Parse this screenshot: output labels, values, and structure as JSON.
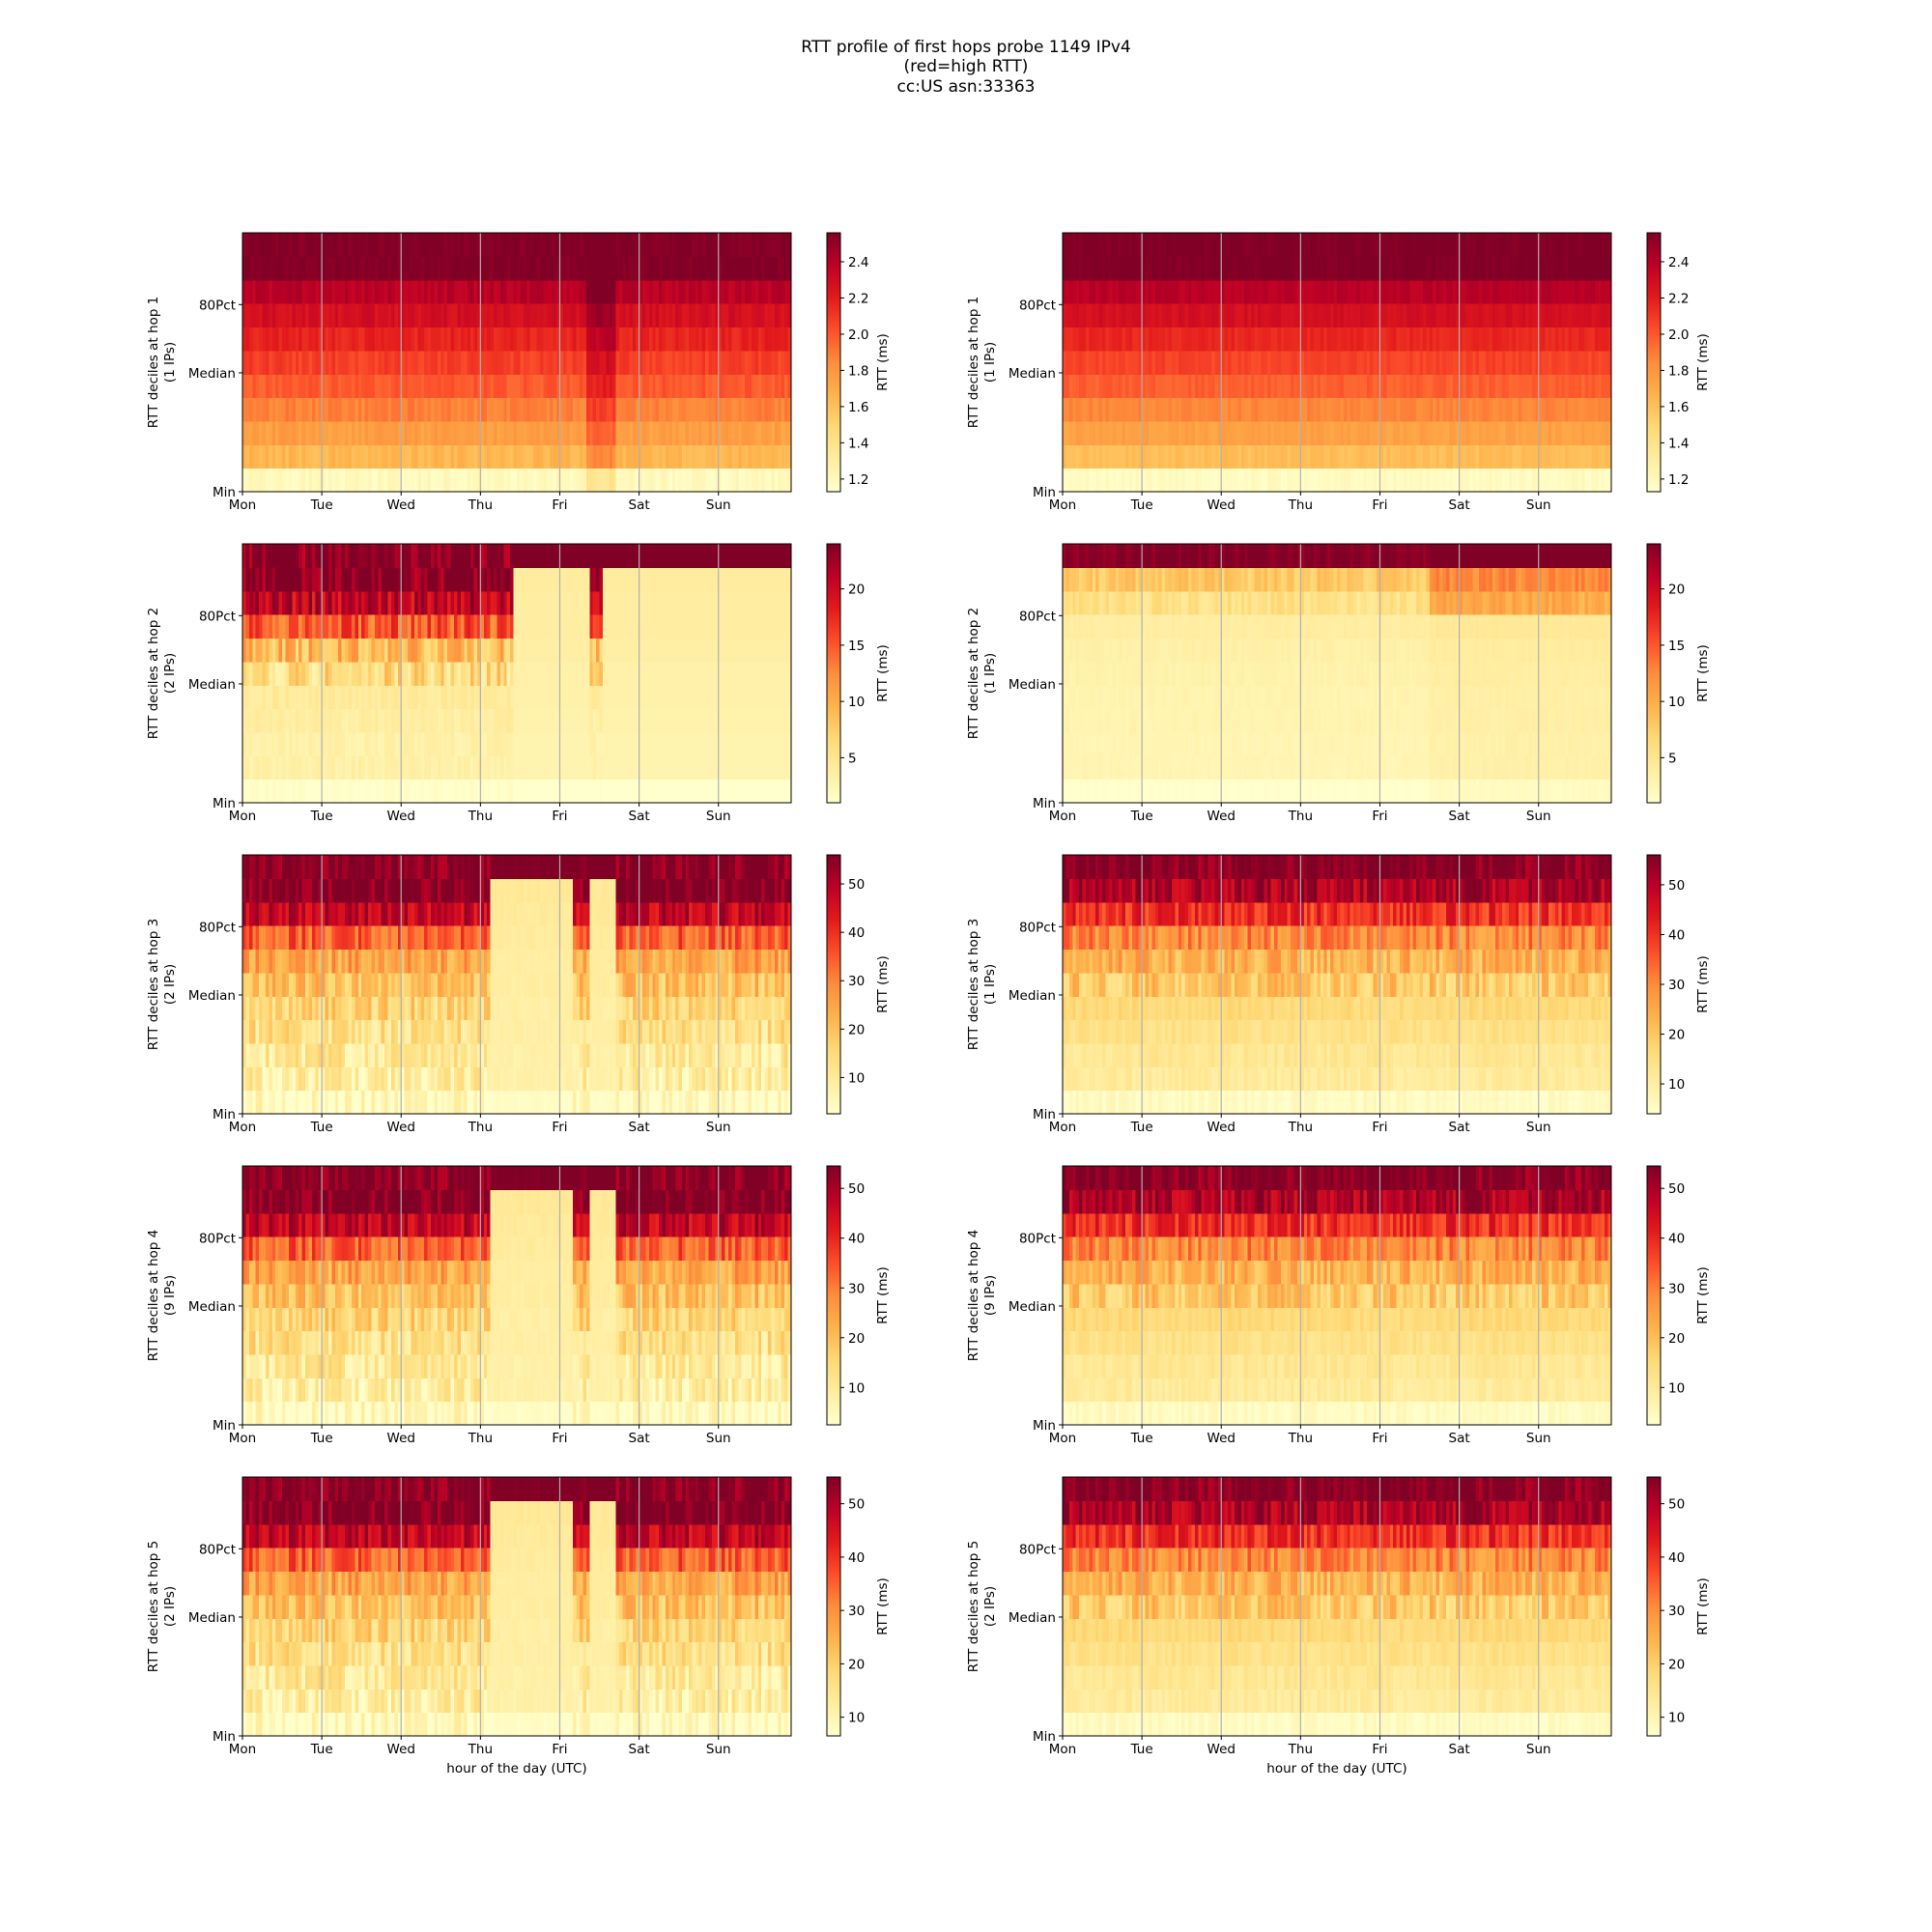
{
  "title_lines": [
    "RTT profile of first hops probe 1149 IPv4",
    "(red=high RTT)",
    "cc:US asn:33363"
  ],
  "x_tick_labels": [
    "Mon",
    "Tue",
    "Wed",
    "Thu",
    "Fri",
    "Sat",
    "Sun"
  ],
  "y_tick_labels": [
    "Min",
    "Median",
    "80Pct"
  ],
  "xlabel": "hour of the day (UTC)",
  "colorbar_label": "RTT (ms)",
  "colormap": [
    "#ffffcc",
    "#ffeda0",
    "#fed976",
    "#feb24c",
    "#fd8d3c",
    "#fc4e2a",
    "#e31a1c",
    "#bd0026",
    "#800026"
  ],
  "chart_data": [
    {
      "type": "heatmap",
      "column": "left",
      "hop": 1,
      "ylabel": "RTT deciles at hop 1",
      "ylabel2": "(1 IPs)",
      "colorbar_ticks": [
        "1.2",
        "1.4",
        "1.6",
        "1.8",
        "2.0",
        "2.2",
        "2.4"
      ],
      "colorbar_values": [
        1.2,
        1.4,
        1.6,
        1.8,
        2.0,
        2.2,
        2.4
      ],
      "color_range": [
        1.13,
        2.56
      ],
      "pattern": "hop1a"
    },
    {
      "type": "heatmap",
      "column": "right",
      "hop": 1,
      "ylabel": "RTT deciles at hop 1",
      "ylabel2": "(1 IPs)",
      "colorbar_ticks": [
        "1.2",
        "1.4",
        "1.6",
        "1.8",
        "2.0",
        "2.2",
        "2.4"
      ],
      "colorbar_values": [
        1.2,
        1.4,
        1.6,
        1.8,
        2.0,
        2.2,
        2.4
      ],
      "color_range": [
        1.13,
        2.56
      ],
      "pattern": "hop1b"
    },
    {
      "type": "heatmap",
      "column": "left",
      "hop": 2,
      "ylabel": "RTT deciles at hop 2",
      "ylabel2": "(2 IPs)",
      "colorbar_ticks": [
        "5",
        "10",
        "15",
        "20"
      ],
      "colorbar_values": [
        5,
        10,
        15,
        20
      ],
      "color_range": [
        1.0,
        24.0
      ],
      "pattern": "hop2a"
    },
    {
      "type": "heatmap",
      "column": "right",
      "hop": 2,
      "ylabel": "RTT deciles at hop 2",
      "ylabel2": "(1 IPs)",
      "colorbar_ticks": [
        "5",
        "10",
        "15",
        "20"
      ],
      "colorbar_values": [
        5,
        10,
        15,
        20
      ],
      "color_range": [
        1.0,
        24.0
      ],
      "pattern": "hop2b"
    },
    {
      "type": "heatmap",
      "column": "left",
      "hop": 3,
      "ylabel": "RTT deciles at hop 3",
      "ylabel2": "(2 IPs)",
      "colorbar_ticks": [
        "10",
        "20",
        "30",
        "40",
        "50"
      ],
      "colorbar_values": [
        10,
        20,
        30,
        40,
        50
      ],
      "color_range": [
        2.5,
        56.0
      ],
      "pattern": "hopNa"
    },
    {
      "type": "heatmap",
      "column": "right",
      "hop": 3,
      "ylabel": "RTT deciles at hop 3",
      "ylabel2": "(1 IPs)",
      "colorbar_ticks": [
        "10",
        "20",
        "30",
        "40",
        "50"
      ],
      "colorbar_values": [
        10,
        20,
        30,
        40,
        50
      ],
      "color_range": [
        4.0,
        56.0
      ],
      "pattern": "hopNb"
    },
    {
      "type": "heatmap",
      "column": "left",
      "hop": 4,
      "ylabel": "RTT deciles at hop 4",
      "ylabel2": "(9 IPs)",
      "colorbar_ticks": [
        "10",
        "20",
        "30",
        "40",
        "50"
      ],
      "colorbar_values": [
        10,
        20,
        30,
        40,
        50
      ],
      "color_range": [
        2.5,
        54.5
      ],
      "pattern": "hopNa"
    },
    {
      "type": "heatmap",
      "column": "right",
      "hop": 4,
      "ylabel": "RTT deciles at hop 4",
      "ylabel2": "(9 IPs)",
      "colorbar_ticks": [
        "10",
        "20",
        "30",
        "40",
        "50"
      ],
      "colorbar_values": [
        10,
        20,
        30,
        40,
        50
      ],
      "color_range": [
        2.5,
        54.5
      ],
      "pattern": "hopNb"
    },
    {
      "type": "heatmap",
      "column": "left",
      "hop": 5,
      "ylabel": "RTT deciles at hop 5",
      "ylabel2": "(2 IPs)",
      "colorbar_ticks": [
        "10",
        "20",
        "30",
        "40",
        "50"
      ],
      "colorbar_values": [
        10,
        20,
        30,
        40,
        50
      ],
      "color_range": [
        6.5,
        55.0
      ],
      "pattern": "hopNa"
    },
    {
      "type": "heatmap",
      "column": "right",
      "hop": 5,
      "ylabel": "RTT deciles at hop 5",
      "ylabel2": "(2 IPs)",
      "colorbar_ticks": [
        "10",
        "20",
        "30",
        "40",
        "50"
      ],
      "colorbar_values": [
        10,
        20,
        30,
        40,
        50
      ],
      "color_range": [
        6.5,
        55.0
      ],
      "pattern": "hopNb"
    }
  ]
}
